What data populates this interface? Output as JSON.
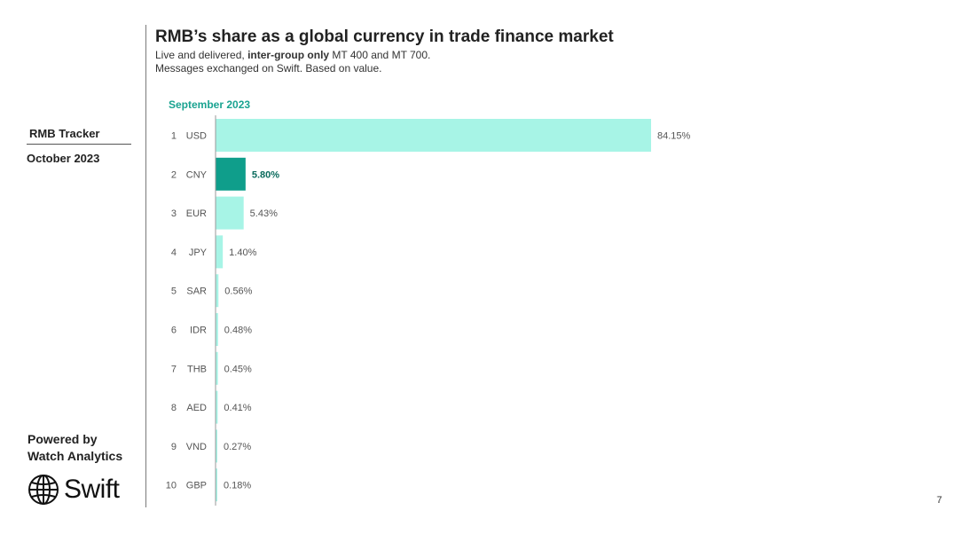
{
  "sidebar": {
    "tracker_title": "RMB Tracker",
    "tracker_date": "October 2023",
    "powered_line1": "Powered by",
    "powered_line2": "Watch Analytics",
    "logo_text": "Swift",
    "logo_icon": "globe-icon"
  },
  "header": {
    "title": "RMB’s share as a global currency in trade finance market",
    "subtitle_pre": "Live and delivered, ",
    "subtitle_bold": "inter-group only",
    "subtitle_post": " MT 400 and MT 700.",
    "subtitle_line2": "Messages exchanged on Swift. Based on value."
  },
  "chart_data": {
    "type": "bar",
    "orientation": "horizontal",
    "title": "September 2023",
    "ranks": [
      "1",
      "2",
      "3",
      "4",
      "5",
      "6",
      "7",
      "8",
      "9",
      "10"
    ],
    "categories": [
      "USD",
      "CNY",
      "EUR",
      "JPY",
      "SAR",
      "IDR",
      "THB",
      "AED",
      "VND",
      "GBP"
    ],
    "values": [
      84.15,
      5.8,
      5.43,
      1.4,
      0.56,
      0.48,
      0.45,
      0.41,
      0.27,
      0.18
    ],
    "value_labels": [
      "84.15%",
      "5.80%",
      "5.43%",
      "1.40%",
      "0.56%",
      "0.48%",
      "0.45%",
      "0.41%",
      "0.27%",
      "0.18%"
    ],
    "highlight": "CNY",
    "colors": {
      "default": "#a7f4e6",
      "highlight": "#0f9e8b",
      "highlight_label": "#0b6b5d"
    },
    "xlim": [
      0,
      84.15
    ],
    "grid": false
  },
  "page_number": "7"
}
